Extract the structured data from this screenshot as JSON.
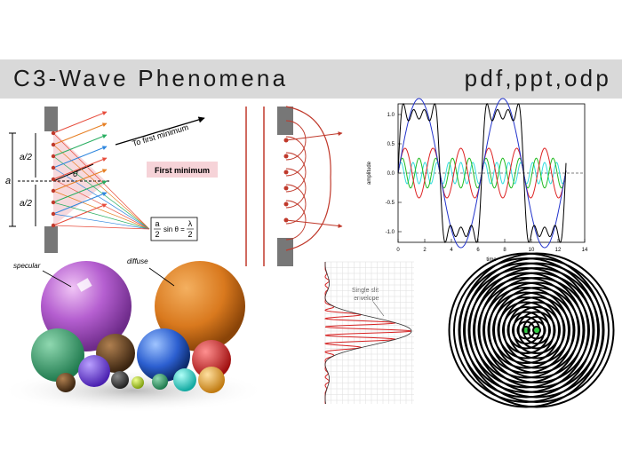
{
  "header": {
    "title": "C3-Wave Phenomena",
    "formats": "pdf,ppt,odp"
  },
  "diffraction": {
    "direction": "To first minimum",
    "label": "First minimum",
    "half_width_top": "a/2",
    "half_width_bottom": "a/2",
    "width": "a",
    "angle": "θ",
    "formula": {
      "lhs_num": "a",
      "lhs_den": "2",
      "middle": "sin θ =",
      "rhs_num": "λ",
      "rhs_den": "2"
    }
  },
  "fourier": {
    "y_label": "amplitude",
    "x_label": "time",
    "yticks": [
      {
        "value": 1,
        "label": "1.0"
      },
      {
        "value": 0.5,
        "label": "0.5"
      },
      {
        "value": 0,
        "label": "0.0"
      },
      {
        "value": -0.5,
        "label": "-0.5"
      },
      {
        "value": -1,
        "label": "-1.0"
      }
    ],
    "xticks": [
      0,
      2,
      4,
      6,
      8,
      10,
      12,
      14
    ]
  },
  "spheres": {
    "specular": "specular",
    "diffuse": "diffuse"
  },
  "single_slit": {
    "annotation_line1": "Single slit",
    "annotation_line2": "envelope"
  }
}
